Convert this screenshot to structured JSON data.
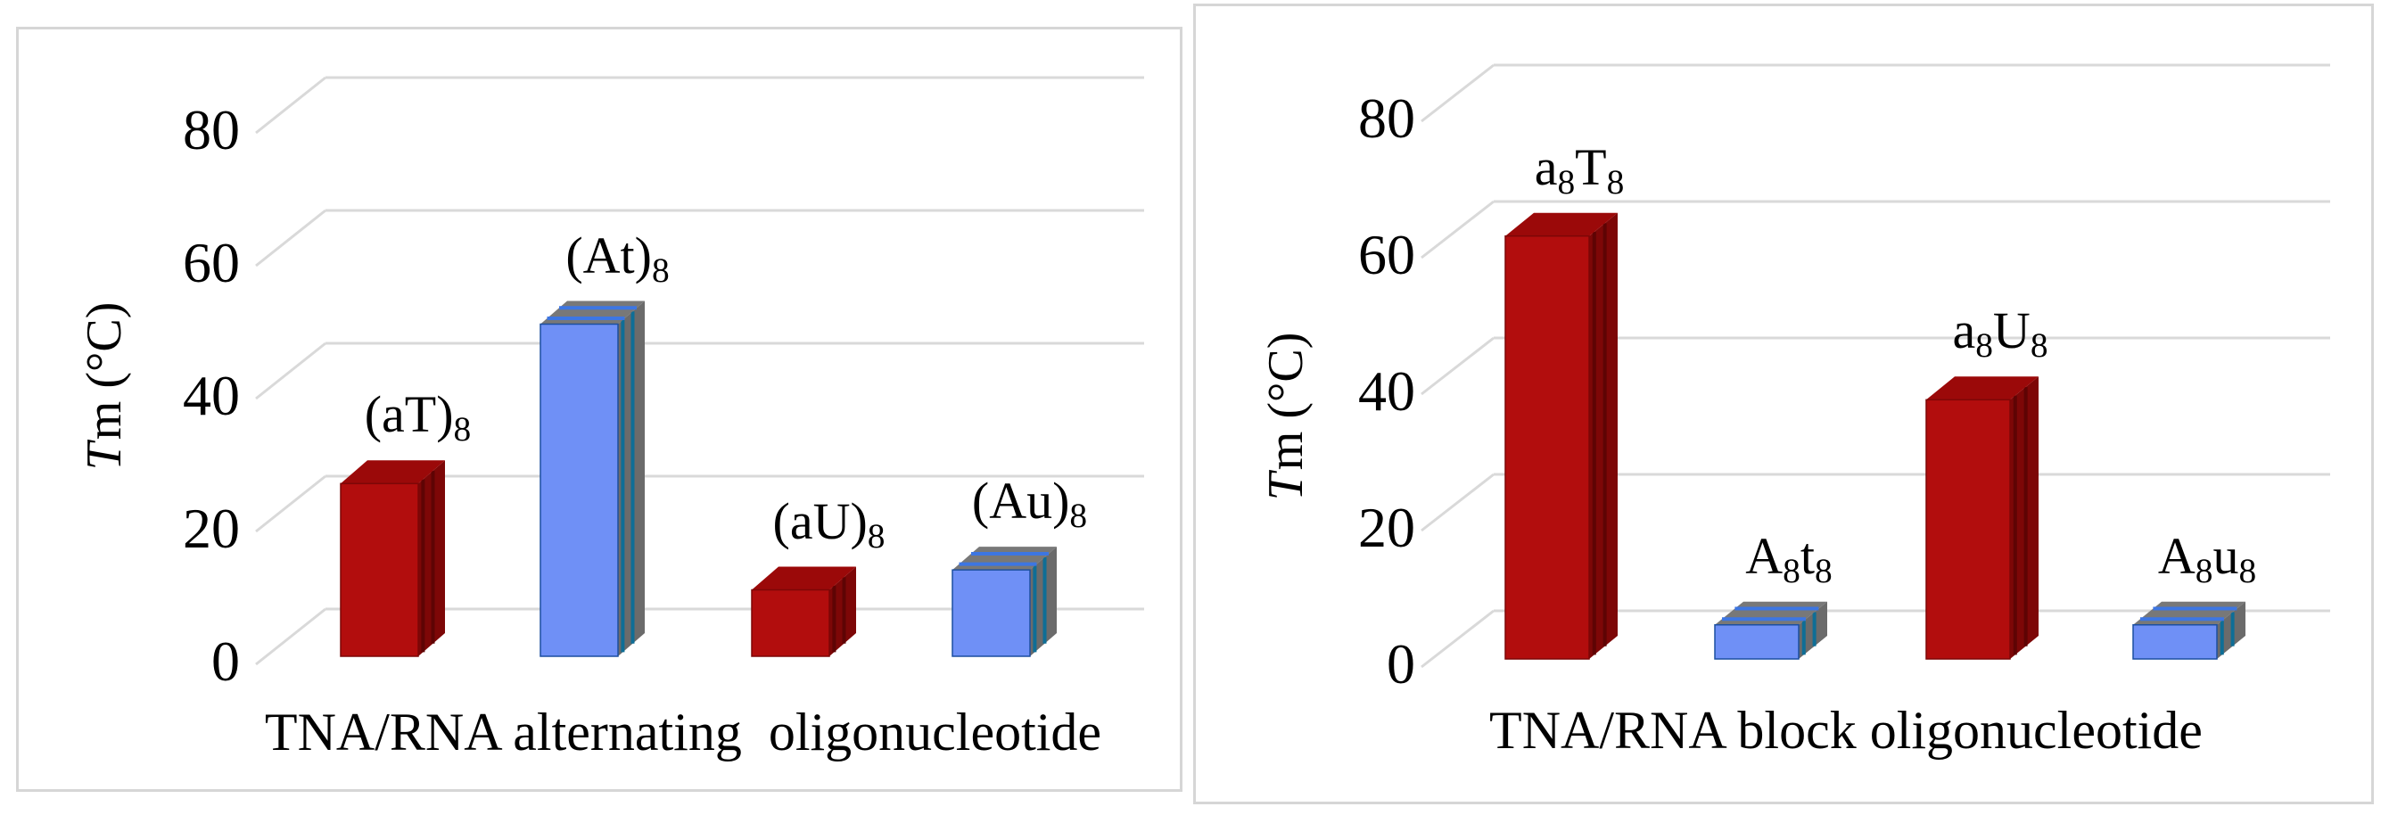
{
  "page": {
    "background": "#ffffff"
  },
  "colors": {
    "red_front": "#B20D0D",
    "red_side": "#7D0707",
    "red_top": "#9B0909",
    "red_stripe": "#5E0404",
    "blue_front": "#6F90F6",
    "blue_side": "#6B6B6B",
    "blue_side_stripe": "#0E6E96",
    "blue_top": "#787878",
    "blue_top_stripe": "#3D76E2",
    "blue_edge": "#1C4FA0",
    "gridline": "#D9D9D9",
    "panel_border": "#D6D6D6",
    "text": "#000000"
  },
  "chart_data": [
    {
      "type": "bar",
      "projection": "3d",
      "xlabel": "TNA/RNA alternating  oligonucleotide",
      "ylabel": "Tm (°C)",
      "ylabel_parts": {
        "italic": "T",
        "rest": "m (°C)"
      },
      "categories": [
        "(aT)8",
        "(At)8",
        "(aU)8",
        "(Au)8"
      ],
      "category_parts": [
        [
          [
            "(aT)",
            false
          ],
          [
            "8",
            true
          ]
        ],
        [
          [
            "(At)",
            false
          ],
          [
            "8",
            true
          ]
        ],
        [
          [
            "(aU)",
            false
          ],
          [
            "8",
            true
          ]
        ],
        [
          [
            "(Au)",
            false
          ],
          [
            "8",
            true
          ]
        ]
      ],
      "values": [
        26,
        50,
        10,
        13
      ],
      "bar_colors": [
        "red",
        "blue",
        "red",
        "blue"
      ],
      "yticks": [
        80,
        60,
        40,
        20,
        0
      ],
      "ylim": [
        0,
        90
      ],
      "grid": true,
      "legend": "none"
    },
    {
      "type": "bar",
      "projection": "3d",
      "xlabel": "TNA/RNA block oligonucleotide",
      "ylabel": "Tm (°C)",
      "ylabel_parts": {
        "italic": "T",
        "rest": "m (°C)"
      },
      "categories": [
        "a8T8",
        "A8t8",
        "a8U8",
        "A8u8"
      ],
      "category_parts": [
        [
          [
            "a",
            false
          ],
          [
            "8",
            true
          ],
          [
            "T",
            false
          ],
          [
            "8",
            true
          ]
        ],
        [
          [
            "A",
            false
          ],
          [
            "8",
            true
          ],
          [
            "t",
            false
          ],
          [
            "8",
            true
          ]
        ],
        [
          [
            "a",
            false
          ],
          [
            "8",
            true
          ],
          [
            "U",
            false
          ],
          [
            "8",
            true
          ]
        ],
        [
          [
            "A",
            false
          ],
          [
            "8",
            true
          ],
          [
            "u",
            false
          ],
          [
            "8",
            true
          ]
        ]
      ],
      "values": [
        62,
        5,
        38,
        5
      ],
      "bar_colors": [
        "red",
        "blue",
        "red",
        "blue"
      ],
      "yticks": [
        80,
        60,
        40,
        20,
        0
      ],
      "ylim": [
        0,
        90
      ],
      "grid": true,
      "legend": "none"
    }
  ]
}
